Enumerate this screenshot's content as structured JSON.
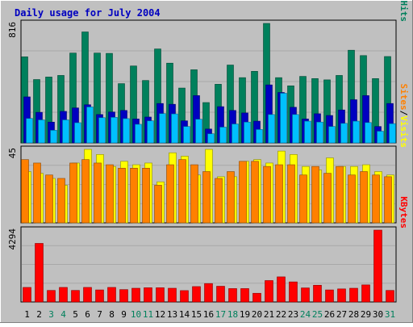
{
  "chart_data": [
    {
      "type": "bar",
      "title": "Daily usage for July 2004",
      "ymax_label": "816",
      "categories": [
        "1",
        "2",
        "3",
        "4",
        "5",
        "6",
        "7",
        "8",
        "9",
        "10",
        "11",
        "12",
        "13",
        "14",
        "15",
        "16",
        "17",
        "18",
        "19",
        "20",
        "21",
        "22",
        "23",
        "24",
        "25",
        "26",
        "27",
        "28",
        "29",
        "30",
        "31"
      ],
      "weekend_days": [
        "3",
        "4",
        "10",
        "11",
        "17",
        "18",
        "24",
        "25",
        "31"
      ],
      "series": [
        {
          "name": "Hits",
          "color": "#00805c",
          "values": [
            546,
            402,
            418,
            428,
            570,
            704,
            570,
            568,
            376,
            488,
            396,
            596,
            506,
            348,
            464,
            256,
            372,
            494,
            414,
            454,
            758,
            414,
            362,
            422,
            408,
            400,
            428,
            588,
            554,
            408,
            548
          ]
        },
        {
          "name": "Files",
          "color": "#0000c0",
          "values": [
            292,
            194,
            132,
            200,
            222,
            242,
            180,
            196,
            206,
            152,
            164,
            250,
            245,
            140,
            300,
            88,
            230,
            206,
            190,
            138,
            368,
            320,
            226,
            152,
            185,
            174,
            209,
            274,
            300,
            104,
            250
          ]
        },
        {
          "name": "Pages",
          "color": "#00c0ff",
          "values": [
            155,
            146,
            80,
            146,
            128,
            228,
            160,
            162,
            154,
            118,
            140,
            186,
            184,
            104,
            150,
            58,
            100,
            120,
            132,
            85,
            180,
            315,
            180,
            138,
            132,
            104,
            124,
            138,
            129,
            74,
            122
          ]
        }
      ],
      "ylabel_parts": [
        {
          "text": "Pages",
          "color": "#00c0ff"
        },
        {
          "text": "/",
          "color": "#000000"
        },
        {
          "text": "Files",
          "color": "#0000c0"
        },
        {
          "text": "/",
          "color": "#000000"
        },
        {
          "text": "Hits",
          "color": "#00805c"
        }
      ]
    },
    {
      "type": "bar",
      "ymax_label": "45",
      "categories": [
        "1",
        "2",
        "3",
        "4",
        "5",
        "6",
        "7",
        "8",
        "9",
        "10",
        "11",
        "12",
        "13",
        "14",
        "15",
        "16",
        "17",
        "18",
        "19",
        "20",
        "21",
        "22",
        "23",
        "24",
        "25",
        "26",
        "27",
        "28",
        "29",
        "30",
        "31"
      ],
      "series": [
        {
          "name": "Visits",
          "color": "#ffff00",
          "values": [
            30,
            29,
            26,
            22,
            35,
            43,
            40,
            33,
            36,
            34,
            35,
            24,
            41,
            39,
            28,
            43,
            27,
            27,
            36,
            37,
            35,
            42,
            40,
            33,
            31,
            38,
            33,
            33,
            34,
            30,
            28
          ]
        },
        {
          "name": "Sites",
          "color": "#ff8000",
          "values": [
            37,
            35,
            28,
            26,
            35,
            37,
            35,
            34,
            32,
            32,
            32,
            22,
            34,
            37,
            34,
            30,
            26,
            30,
            36,
            36,
            33,
            34,
            34,
            28,
            33,
            29,
            33,
            28,
            30,
            28,
            27
          ]
        }
      ],
      "ylabel_parts": [
        {
          "text": "Sites",
          "color": "#ff8000"
        },
        {
          "text": "/",
          "color": "#000000"
        },
        {
          "text": "Visits",
          "color": "#ffff00"
        }
      ]
    },
    {
      "type": "bar",
      "ymax_label": "4294",
      "categories": [
        "1",
        "2",
        "3",
        "4",
        "5",
        "6",
        "7",
        "8",
        "9",
        "10",
        "11",
        "12",
        "13",
        "14",
        "15",
        "16",
        "17",
        "18",
        "19",
        "20",
        "21",
        "22",
        "23",
        "24",
        "25",
        "26",
        "27",
        "28",
        "29",
        "30",
        "31"
      ],
      "series": [
        {
          "name": "KBytes",
          "color": "#ff0000",
          "values": [
            870,
            3500,
            690,
            870,
            690,
            870,
            720,
            870,
            740,
            820,
            850,
            850,
            820,
            680,
            920,
            1100,
            940,
            800,
            800,
            520,
            1280,
            1500,
            1200,
            840,
            1000,
            720,
            780,
            820,
            1020,
            4294,
            690
          ]
        }
      ],
      "ylabel_parts": [
        {
          "text": "KBytes",
          "color": "#ff0000"
        }
      ]
    }
  ]
}
